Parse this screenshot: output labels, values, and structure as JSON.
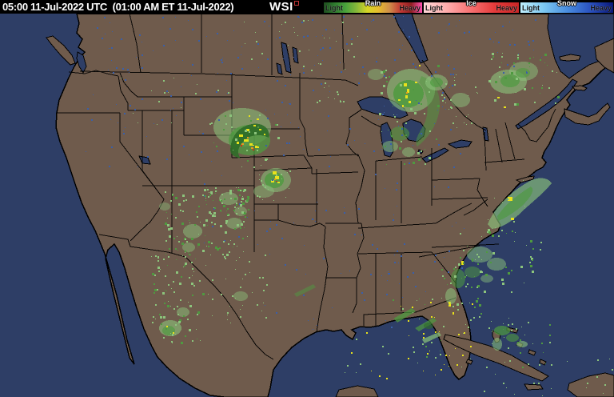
{
  "titlebar": {
    "timestamp": "05:00 11-Jul-2022 UTC  (01:00 AM ET 11-Jul-2022)",
    "logo_text": "WSI"
  },
  "legend": {
    "rain": {
      "name": "Rain",
      "light_label": "Light",
      "heavy_label": "Heavy",
      "colors": [
        "#1e4d1e",
        "#2e7a2e",
        "#49a23c",
        "#86b83a",
        "#d6d626",
        "#e6bc2e",
        "#cf8f4a",
        "#c23a34",
        "#8f1f22",
        "#ff50b0"
      ]
    },
    "ice": {
      "name": "Ice",
      "light_label": "Light",
      "heavy_label": "Heavy",
      "colors": [
        "#ffd8d8",
        "#ffaaaa",
        "#f77070",
        "#e43a3a",
        "#c92626"
      ]
    },
    "snow": {
      "name": "Snow",
      "light_label": "Light",
      "heavy_label": "Heavy",
      "colors": [
        "#c0f0ff",
        "#7cc8f2",
        "#4a8ee0",
        "#2a52c0",
        "#0a1878"
      ]
    }
  },
  "map": {
    "colors": {
      "water": "#2e3e66",
      "land": "#6f5b4c",
      "border": "#000000",
      "lake_speckle": "#3a5fa8",
      "echo_light": "#8cc47c",
      "echo_medium": "#4f9a40",
      "echo_dark": "#2f6d28",
      "echo_yellow": "#e8e21c",
      "echo_orange": "#e8981c",
      "echo_red": "#d22818"
    }
  }
}
